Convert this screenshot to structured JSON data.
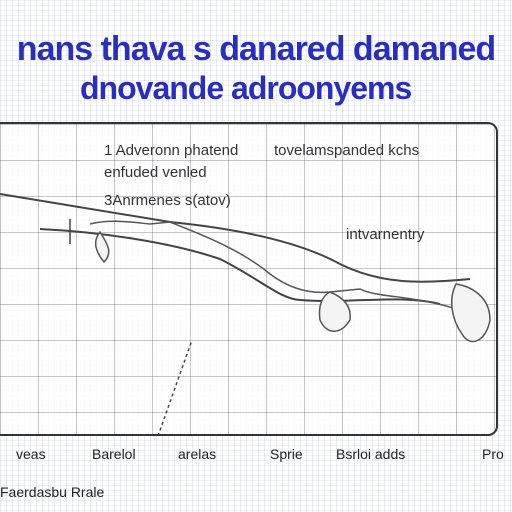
{
  "title": {
    "line1": "nans thava s danared damaned",
    "line2": "dnovande adroonyems"
  },
  "panel": {
    "label_top_left": "1 Adveronn phatend",
    "label_top_right": "tovelamspanded kchs",
    "label_second": "enfuded venled",
    "label_third": "3Anrmenes s(atov)",
    "label_right": "intvarnentry"
  },
  "axis_ticks": [
    "veas",
    "Barelol",
    "arelas",
    "Sprie",
    "Bsrloi adds",
    "Pro"
  ],
  "footer": "Faerdasbu Rrale",
  "colors": {
    "title": "#2b2fb8",
    "line": "#333333"
  }
}
